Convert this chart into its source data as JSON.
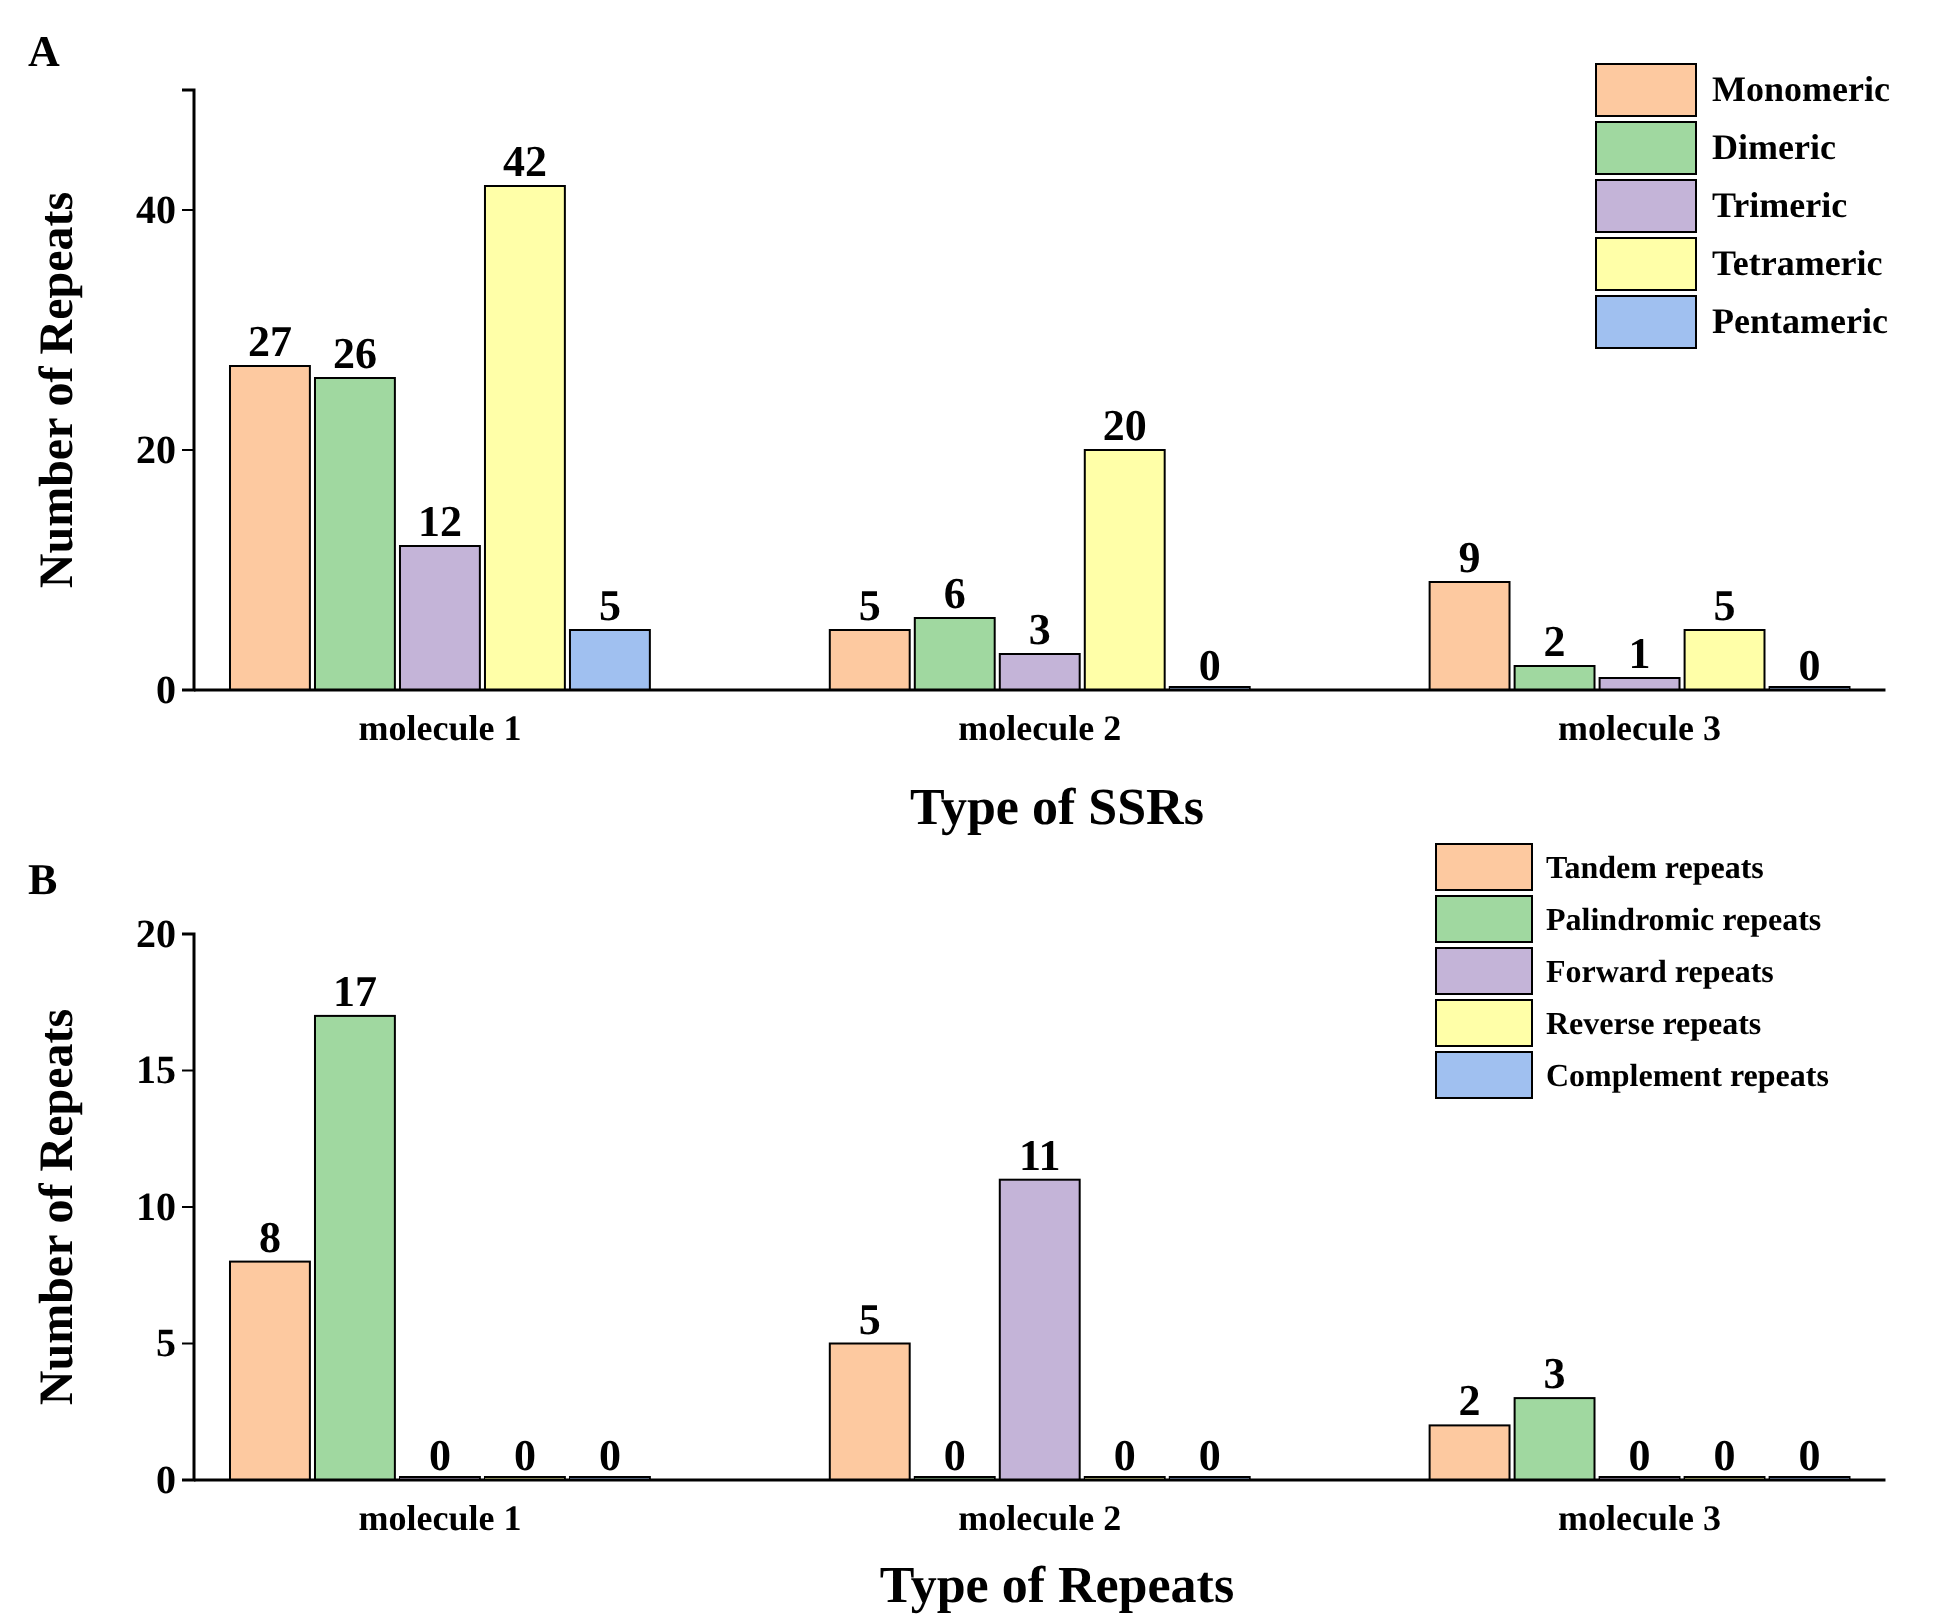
{
  "chart_data": [
    {
      "type": "bar",
      "title": "A",
      "xlabel": "Type of SSRs",
      "ylabel": "Number of Repeats",
      "categories": [
        "molecule 1",
        "molecule 2",
        "molecule 3"
      ],
      "ylim": [
        0,
        50
      ],
      "yticks": [
        0,
        20,
        40
      ],
      "grid": false,
      "legend": "top right",
      "data_labels": true,
      "series": [
        {
          "name": "Monomeric",
          "color": "#fdc9a0",
          "values": [
            27,
            5,
            9
          ]
        },
        {
          "name": "Dimeric",
          "color": "#a0d8a0",
          "values": [
            26,
            6,
            2
          ]
        },
        {
          "name": "Trimeric",
          "color": "#c4b4d8",
          "values": [
            12,
            3,
            1
          ]
        },
        {
          "name": "Tetrameric",
          "color": "#ffffa8",
          "values": [
            42,
            20,
            5
          ]
        },
        {
          "name": "Pentameric",
          "color": "#a0c0f0",
          "values": [
            5,
            0,
            0
          ]
        }
      ]
    },
    {
      "type": "bar",
      "title": "B",
      "xlabel": "Type of Repeats",
      "ylabel": "Number of Repeats",
      "categories": [
        "molecule 1",
        "molecule 2",
        "molecule 3"
      ],
      "ylim": [
        0,
        20
      ],
      "yticks": [
        0,
        5,
        10,
        15,
        20
      ],
      "grid": false,
      "legend": "top right",
      "data_labels": true,
      "series": [
        {
          "name": "Tandem repeats",
          "color": "#fdc9a0",
          "values": [
            8,
            5,
            2
          ]
        },
        {
          "name": "Palindromic repeats",
          "color": "#a0d8a0",
          "values": [
            17,
            0,
            3
          ]
        },
        {
          "name": "Forward repeats",
          "color": "#c4b4d8",
          "values": [
            0,
            11,
            0
          ]
        },
        {
          "name": "Reverse repeats",
          "color": "#ffffa8",
          "values": [
            0,
            0,
            0
          ]
        },
        {
          "name": "Complement repeats",
          "color": "#a0c0f0",
          "values": [
            0,
            0,
            0
          ]
        }
      ]
    }
  ]
}
